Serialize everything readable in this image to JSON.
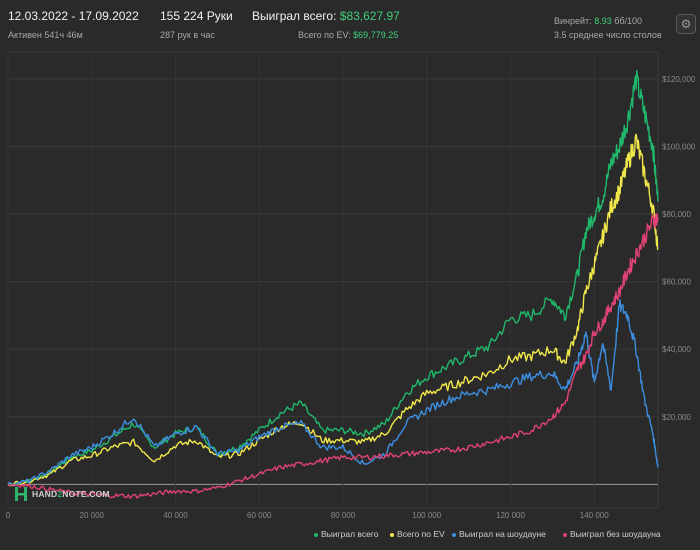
{
  "header": {
    "date_range": "12.03.2022 - 17.09.2022",
    "active": "Активен 541ч 46м",
    "hands": "155 224 Руки",
    "hands_per_hour": "287 рук в час",
    "won_total_label": "Выиграл всего:",
    "won_total_value": "$83,627.97",
    "ev_total_label": "Всего по EV:",
    "ev_total_value": "$69,779.25",
    "winrate_label": "Винрейт:",
    "winrate_value": "8.93",
    "winrate_unit": "бб/100",
    "tables": "3.5 среднее число столов"
  },
  "logo": {
    "text_left": "HAND",
    "text_mid": "2",
    "text_right": "NOTE.COM"
  },
  "chart_data": {
    "type": "line",
    "xlim": [
      0,
      155224
    ],
    "ylim": [
      -7000,
      128000
    ],
    "x_ticks": [
      0,
      20000,
      40000,
      60000,
      80000,
      100000,
      120000,
      140000
    ],
    "x_tick_labels": [
      "0",
      "20 000",
      "40 000",
      "60 000",
      "80 000",
      "100 000",
      "120 000",
      "140 000"
    ],
    "y_ticks": [
      20000,
      40000,
      60000,
      80000,
      100000,
      120000
    ],
    "y_tick_labels": [
      "$20,000",
      "$40,000",
      "$60,000",
      "$80,000",
      "$100,000",
      "$120,000"
    ],
    "grid": true,
    "legend_position": "bottom-right",
    "x": [
      0,
      5000,
      10000,
      15000,
      20000,
      25000,
      30000,
      35000,
      40000,
      45000,
      50000,
      55000,
      60000,
      65000,
      70000,
      75000,
      80000,
      85000,
      90000,
      95000,
      100000,
      105000,
      110000,
      115000,
      120000,
      125000,
      130000,
      133000,
      136000,
      138000,
      140000,
      142000,
      144000,
      146000,
      148000,
      150000,
      152000,
      154000,
      155224
    ],
    "series": [
      {
        "name": "Выиграл всего",
        "color": "#20b86a",
        "values": [
          0,
          1000,
          3500,
          8000,
          10000,
          14000,
          18000,
          11000,
          15000,
          17000,
          9000,
          11000,
          16000,
          21000,
          24000,
          16000,
          16000,
          15000,
          18000,
          27000,
          32000,
          35000,
          38000,
          41000,
          49000,
          50000,
          55000,
          50000,
          62000,
          75000,
          80000,
          85000,
          95000,
          100000,
          108000,
          120000,
          110000,
          100000,
          83628
        ]
      },
      {
        "name": "Всего по EV",
        "color": "#f0e84a",
        "values": [
          0,
          1000,
          3000,
          7000,
          8500,
          11000,
          12500,
          7000,
          11500,
          13000,
          8000,
          9000,
          13000,
          17000,
          18500,
          13000,
          13000,
          12500,
          15000,
          22000,
          27000,
          29000,
          31000,
          33000,
          37000,
          38000,
          40000,
          36000,
          46000,
          57000,
          65000,
          73000,
          82000,
          87000,
          95000,
          102000,
          92000,
          82000,
          69779
        ]
      },
      {
        "name": "Выиграл на шоудауне",
        "color": "#3c8ee0",
        "values": [
          0,
          1000,
          4000,
          8500,
          11000,
          15000,
          20000,
          11000,
          15000,
          17000,
          9000,
          10000,
          14000,
          17000,
          18000,
          11000,
          11000,
          6000,
          9000,
          18000,
          22000,
          25000,
          27000,
          28000,
          30000,
          32000,
          33000,
          28000,
          36000,
          45000,
          30000,
          42000,
          28000,
          53000,
          50000,
          40000,
          25000,
          15000,
          5000
        ]
      },
      {
        "name": "Выиграл без шоудауна",
        "color": "#e04373",
        "values": [
          0,
          -400,
          -1500,
          -2500,
          -3000,
          -3300,
          -3500,
          -2800,
          -2000,
          -2000,
          -1000,
          1000,
          3000,
          5000,
          6000,
          7000,
          8000,
          8000,
          8500,
          9000,
          9500,
          10000,
          11000,
          12500,
          14000,
          16000,
          20000,
          24000,
          34000,
          38000,
          45000,
          48000,
          53000,
          57000,
          63000,
          68000,
          73000,
          78000,
          79000
        ]
      }
    ]
  }
}
